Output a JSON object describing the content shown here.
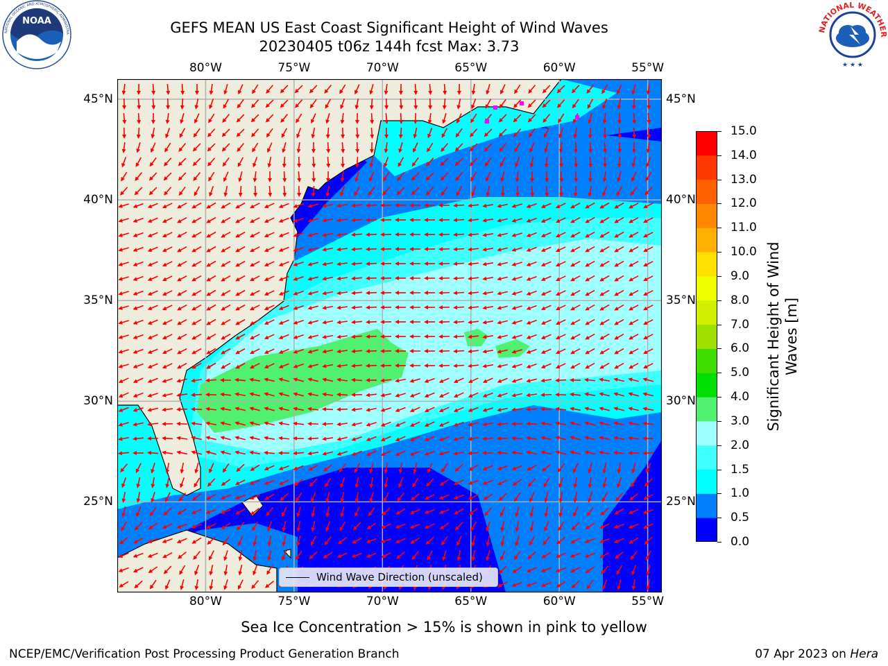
{
  "title": {
    "line1": "GEFS MEAN US East Coast Significant Height of Wind Waves",
    "line2": "20230405 t06z 144h fcst   Max: 3.73"
  },
  "logos": {
    "left": {
      "name": "noaa-logo",
      "text": "NOAA",
      "ring_text": "NATIONAL OCEANIC AND ATMOSPHERIC ADMINISTRATION · U.S. DEPARTMENT OF COMMERCE"
    },
    "right": {
      "name": "nws-logo",
      "ring_text": "NATIONAL WEATHER SERVICE"
    }
  },
  "map": {
    "lon_labels": [
      "80°W",
      "75°W",
      "70°W",
      "65°W",
      "60°W",
      "55°W"
    ],
    "lat_labels": [
      "45°N",
      "40°N",
      "35°N",
      "30°N",
      "25°N"
    ],
    "lon_values": [
      -80,
      -75,
      -70,
      -65,
      -60,
      -55
    ],
    "lat_values": [
      45,
      40,
      35,
      30,
      25
    ],
    "extent": {
      "lon_min": -85,
      "lon_max": -54.2,
      "lat_min": 20.5,
      "lat_max": 46
    },
    "colors": {
      "land": "#eeeddd",
      "grid": "#b0b0b0",
      "arrow": "#ff0000",
      "ice": "#ff00ff"
    }
  },
  "colorbar": {
    "label": "Significant Height of Wind\nWaves [m]",
    "ticks": [
      "15.0",
      "14.0",
      "13.0",
      "12.0",
      "11.0",
      "10.0",
      "9.0",
      "8.0",
      "7.0",
      "6.0",
      "5.0",
      "4.0",
      "3.0",
      "2.0",
      "1.5",
      "1.0",
      "0.5",
      "0.0"
    ],
    "levels": [
      0,
      0.5,
      1.0,
      1.5,
      2.0,
      3.0,
      4.0,
      5.0,
      6.0,
      7.0,
      8.0,
      9.0,
      10.0,
      11.0,
      12.0,
      13.0,
      14.0,
      15.0
    ],
    "colors": [
      "#0000ff",
      "#0080ff",
      "#00ffff",
      "#40ffff",
      "#a0ffff",
      "#50f070",
      "#00e000",
      "#40dd00",
      "#a0e000",
      "#d0f000",
      "#f0ff00",
      "#ffe000",
      "#ffb000",
      "#ff8800",
      "#ff6000",
      "#ff3800",
      "#ff0000"
    ]
  },
  "legend": {
    "label": "Wind Wave Direction (unscaled)"
  },
  "subtitle": "Sea Ice Concentration > 15% is shown in pink to yellow",
  "footer": {
    "left": "NCEP/EMC/Verification Post Processing Product Generation Branch",
    "right_date": "07 Apr 2023 on ",
    "right_machine": "Hera"
  }
}
